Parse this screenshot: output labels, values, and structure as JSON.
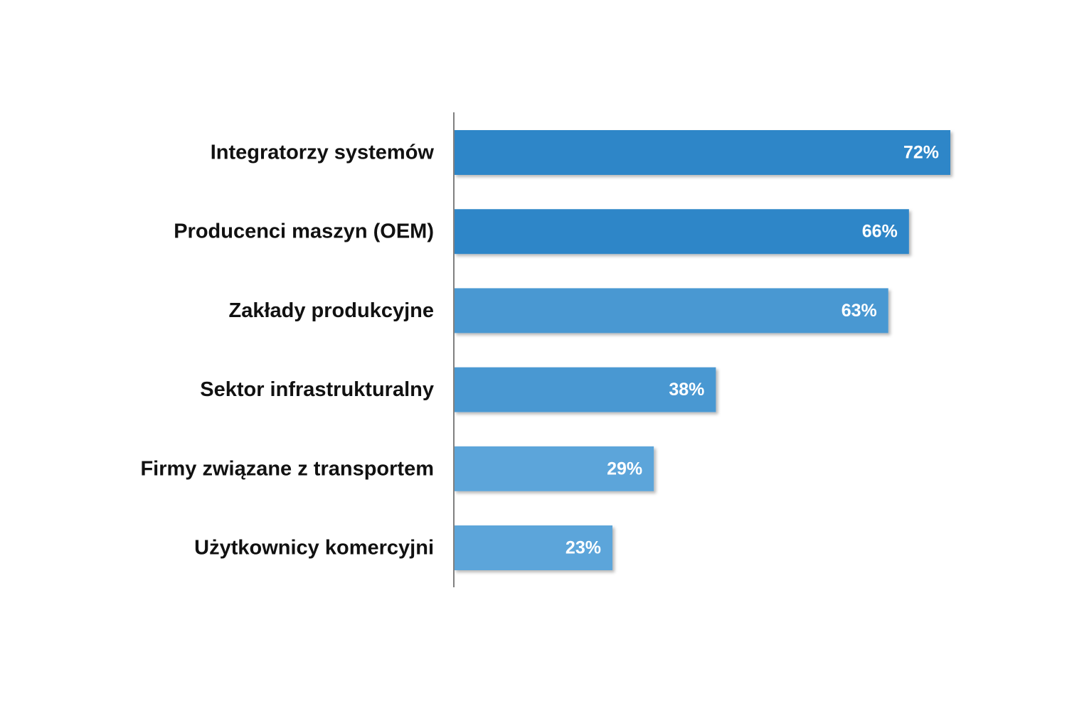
{
  "chart_data": {
    "type": "bar",
    "orientation": "horizontal",
    "categories": [
      "Integratorzy systemów",
      "Producenci maszyn (OEM)",
      "Zakłady produkcyjne",
      "Sektor infrastrukturalny",
      "Firmy związane z transportem",
      "Użytkownicy komercyjni"
    ],
    "values": [
      72,
      66,
      63,
      38,
      29,
      23
    ],
    "value_labels": [
      "72%",
      "66%",
      "63%",
      "38%",
      "29%",
      "23%"
    ],
    "unit": "%",
    "bar_colors": [
      "#2E86C8",
      "#2E86C8",
      "#4A98D2",
      "#4A98D2",
      "#5BA5DA",
      "#5BA5DA"
    ],
    "axis_color": "#808080",
    "xlim": [
      0,
      100
    ],
    "grid": false,
    "legend": "none",
    "title": "",
    "xlabel": "",
    "ylabel": ""
  }
}
